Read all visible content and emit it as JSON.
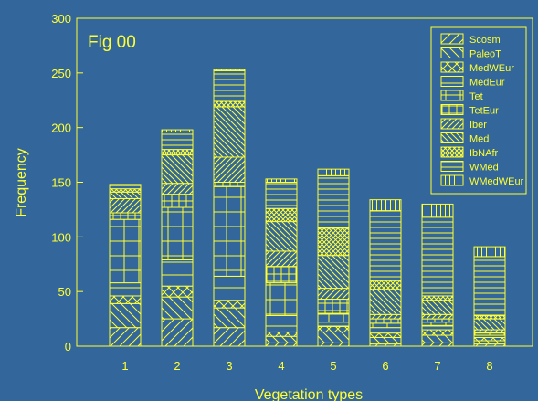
{
  "chart_data": {
    "type": "bar",
    "stacked": true,
    "annotation": "Fig 00",
    "xlabel": "Vegetation types",
    "ylabel": "Frequency",
    "ylim": [
      0,
      300
    ],
    "yticks": [
      0,
      50,
      100,
      150,
      200,
      250,
      300
    ],
    "categories": [
      "1",
      "2",
      "3",
      "4",
      "5",
      "6",
      "7",
      "8"
    ],
    "legend_position": "top-right",
    "colors": {
      "background": "#33669a",
      "ink": "#ffff33"
    },
    "series": [
      {
        "name": "Scosm",
        "pattern": "diag-fwd",
        "values": [
          17,
          25,
          17,
          3,
          3,
          2,
          3,
          2
        ]
      },
      {
        "name": "PaleoT",
        "pattern": "diag-back",
        "values": [
          22,
          20,
          18,
          6,
          10,
          6,
          7,
          3
        ]
      },
      {
        "name": "MedWEur",
        "pattern": "crosshatch",
        "values": [
          7,
          10,
          7,
          4,
          5,
          4,
          5,
          3
        ]
      },
      {
        "name": "MedEur",
        "pattern": "wide-h",
        "values": [
          12,
          24,
          22,
          15,
          4,
          5,
          4,
          2
        ]
      },
      {
        "name": "Tet",
        "pattern": "grid",
        "values": [
          58,
          48,
          82,
          30,
          8,
          4,
          3,
          2
        ]
      },
      {
        "name": "TetEur",
        "pattern": "grid-small",
        "values": [
          6,
          12,
          4,
          15,
          13,
          4,
          3,
          1
        ]
      },
      {
        "name": "Iber",
        "pattern": "diag-fwd-dense",
        "values": [
          13,
          10,
          23,
          14,
          10,
          4,
          4,
          2
        ]
      },
      {
        "name": "Med",
        "pattern": "diag-back-dense",
        "values": [
          6,
          26,
          46,
          27,
          30,
          23,
          13,
          10
        ]
      },
      {
        "name": "IbNAfr",
        "pattern": "crosshatch-dense",
        "values": [
          3,
          5,
          5,
          12,
          25,
          8,
          4,
          3
        ]
      },
      {
        "name": "WMed",
        "pattern": "horizontal",
        "values": [
          3,
          16,
          28,
          24,
          48,
          64,
          72,
          54
        ]
      },
      {
        "name": "WMedWEur",
        "pattern": "vertical",
        "values": [
          1,
          2,
          1,
          3,
          6,
          10,
          12,
          9
        ]
      }
    ]
  }
}
